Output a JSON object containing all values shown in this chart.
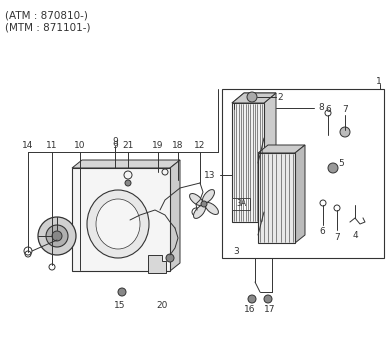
{
  "bg_color": "#ffffff",
  "lc": "#333333",
  "tc": "#333333",
  "fs": 6.5,
  "title1": "(ATM : 870810-)",
  "title2": "(MTM : 871101-)"
}
